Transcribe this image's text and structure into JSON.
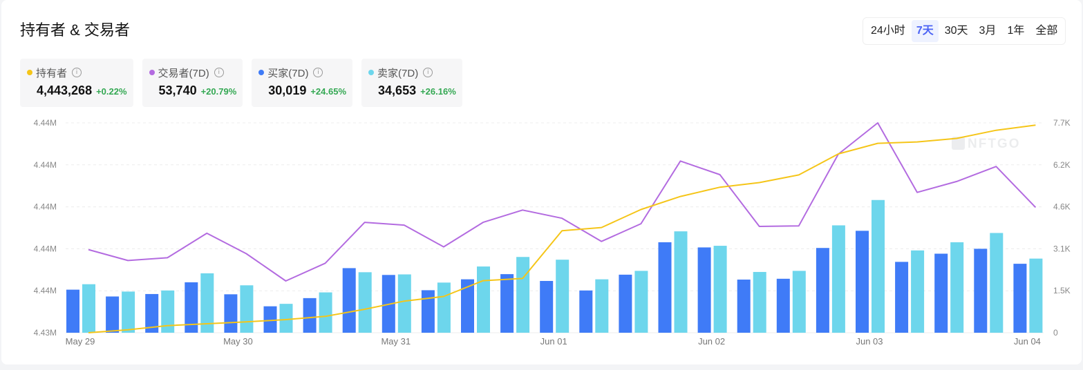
{
  "header": {
    "title": "持有者 & 交易者"
  },
  "time_range": {
    "tabs": [
      "24小时",
      "7天",
      "30天",
      "3月",
      "1年",
      "全部"
    ],
    "active": "7天"
  },
  "stats": [
    {
      "label": "持有者",
      "value": "4,443,268",
      "change": "+0.22%",
      "color": "#f5c518"
    },
    {
      "label": "交易者(7D)",
      "value": "53,740",
      "change": "+20.79%",
      "color": "#b36be0"
    },
    {
      "label": "买家(7D)",
      "value": "30,019",
      "change": "+24.65%",
      "color": "#3f7bf7"
    },
    {
      "label": "卖家(7D)",
      "value": "34,653",
      "change": "+26.16%",
      "color": "#6dd6ec"
    }
  ],
  "watermark": "NFTGO",
  "info_glyph": "i",
  "colors": {
    "holders": "#f5c518",
    "traders": "#b36be0",
    "buyers": "#3f7bf7",
    "sellers": "#6dd6ec",
    "positive": "#34a853",
    "accent": "#4b63f5"
  },
  "chart_data": {
    "type": "bar",
    "x_tick_labels": [
      "May 29",
      "May 30",
      "May 31",
      "Jun 01",
      "Jun 02",
      "Jun 03",
      "Jun 04"
    ],
    "y_left_ticks": [
      "4.43M",
      "4.44M",
      "4.44M",
      "4.44M",
      "4.44M",
      "4.44M"
    ],
    "y_right_ticks": [
      "0",
      "1.5K",
      "3.1K",
      "4.6K",
      "6.2K",
      "7.7K"
    ],
    "ylim_right": [
      0,
      7700
    ],
    "grid": true,
    "series": [
      {
        "name": "买家",
        "axis": "right",
        "type": "bar",
        "values": [
          1580,
          1330,
          1420,
          1850,
          1410,
          970,
          1270,
          2370,
          2120,
          1560,
          1960,
          2150,
          1900,
          1550,
          2130,
          3320,
          3130,
          1950,
          1980,
          3110,
          3740,
          2600,
          2900,
          3080,
          2530
        ]
      },
      {
        "name": "卖家",
        "axis": "right",
        "type": "bar",
        "values": [
          1780,
          1510,
          1550,
          2180,
          1740,
          1060,
          1480,
          2220,
          2140,
          1840,
          2430,
          2780,
          2680,
          1960,
          2270,
          3720,
          3190,
          2230,
          2270,
          3940,
          4870,
          3020,
          3320,
          3660,
          2720
        ]
      },
      {
        "name": "交易者",
        "axis": "right",
        "type": "line",
        "values": [
          3050,
          2650,
          2750,
          3650,
          2900,
          1900,
          2550,
          4050,
          3950,
          3150,
          4050,
          4500,
          4200,
          3350,
          4000,
          6300,
          5800,
          3900,
          3920,
          6550,
          7700,
          5150,
          5550,
          6100,
          4600
        ]
      },
      {
        "name": "持有者",
        "axis": "left",
        "type": "line",
        "values": [
          0,
          110,
          260,
          330,
          400,
          480,
          600,
          860,
          1160,
          1330,
          1910,
          1990,
          3740,
          3860,
          4520,
          5000,
          5340,
          5510,
          5790,
          6560,
          6950,
          7000,
          7130,
          7430,
          7620
        ]
      }
    ]
  }
}
